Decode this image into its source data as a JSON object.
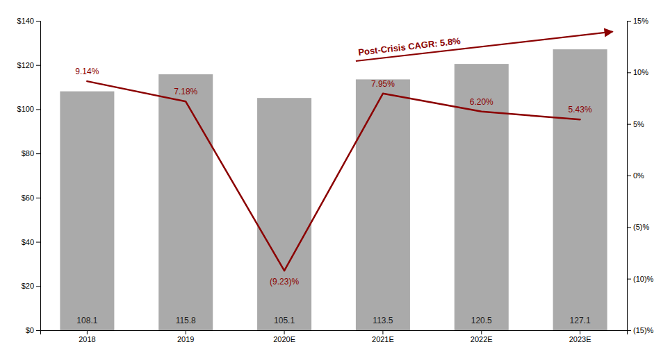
{
  "chart_data": {
    "type": "bar",
    "categories": [
      "2018",
      "2019",
      "2020E",
      "2021E",
      "2022E",
      "2023E"
    ],
    "series": [
      {
        "type": "bar",
        "color": "#aaaaaa",
        "values": [
          108.1,
          115.8,
          105.1,
          113.5,
          120.5,
          127.1
        ]
      },
      {
        "type": "line",
        "axis": "y2",
        "color": "#8b0000",
        "values": [
          9.14,
          7.18,
          -9.23,
          7.95,
          6.2,
          5.43
        ],
        "value_labels": [
          "9.14%",
          "7.18%",
          "(9.23)%",
          "7.95%",
          "6.20%",
          "5.43%"
        ]
      }
    ],
    "ylim": [
      0,
      140
    ],
    "yticks": [
      {
        "value": 0,
        "label": "$0"
      },
      {
        "value": 20,
        "label": "$20"
      },
      {
        "value": 40,
        "label": "$40"
      },
      {
        "value": 60,
        "label": "$60"
      },
      {
        "value": 80,
        "label": "$80"
      },
      {
        "value": 100,
        "label": "$100"
      },
      {
        "value": 120,
        "label": "$120"
      },
      {
        "value": 140,
        "label": "$140"
      }
    ],
    "y2lim": [
      -15,
      15
    ],
    "y2ticks": [
      {
        "value": -15,
        "label": "(15)%"
      },
      {
        "value": -10,
        "label": "(10)%"
      },
      {
        "value": -5,
        "label": "(5)%"
      },
      {
        "value": 0,
        "label": "0%"
      },
      {
        "value": 5,
        "label": "5%"
      },
      {
        "value": 10,
        "label": "10%"
      },
      {
        "value": 15,
        "label": "15%"
      }
    ],
    "grid": false,
    "data_labels": true,
    "annotations": [
      {
        "text": "Post-Crisis CAGR: 5.8%",
        "color": "#8b0000"
      }
    ]
  }
}
